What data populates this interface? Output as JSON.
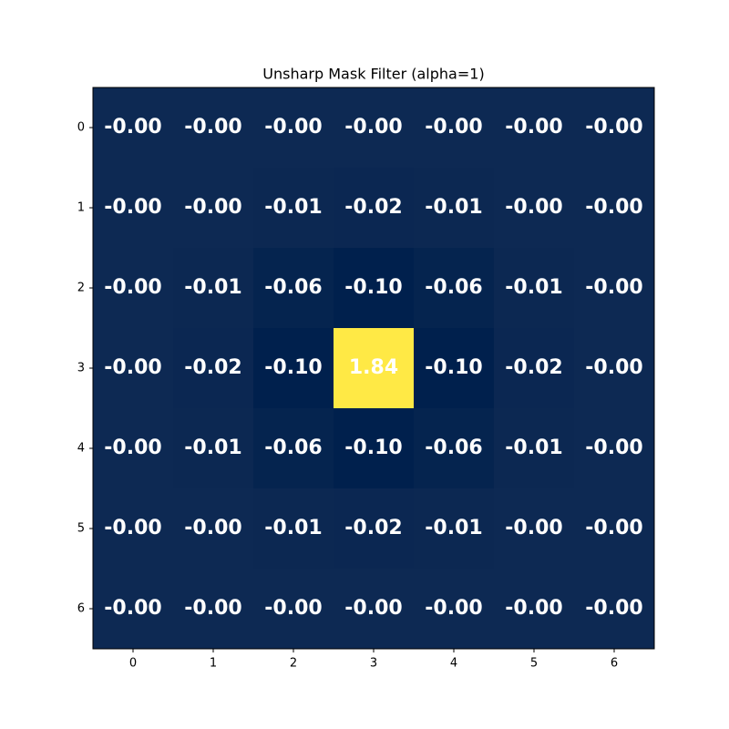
{
  "chart_data": {
    "type": "heatmap",
    "title": "Unsharp Mask Filter (alpha=1)",
    "values": [
      [
        -0.0001,
        -0.0008,
        -0.003,
        -0.004,
        -0.003,
        -0.0008,
        -0.0001
      ],
      [
        -0.0008,
        -0.004,
        -0.012,
        -0.02,
        -0.012,
        -0.004,
        -0.0008
      ],
      [
        -0.003,
        -0.012,
        -0.06,
        -0.1,
        -0.06,
        -0.012,
        -0.003
      ],
      [
        -0.004,
        -0.02,
        -0.1,
        1.84,
        -0.1,
        -0.02,
        -0.004
      ],
      [
        -0.003,
        -0.012,
        -0.06,
        -0.1,
        -0.06,
        -0.012,
        -0.003
      ],
      [
        -0.0008,
        -0.004,
        -0.012,
        -0.02,
        -0.012,
        -0.004,
        -0.0008
      ],
      [
        -0.0001,
        -0.0008,
        -0.003,
        -0.004,
        -0.003,
        -0.0008,
        -0.0001
      ]
    ],
    "value_labels": [
      [
        "-0.00",
        "-0.00",
        "-0.00",
        "-0.00",
        "-0.00",
        "-0.00",
        "-0.00"
      ],
      [
        "-0.00",
        "-0.00",
        "-0.01",
        "-0.02",
        "-0.01",
        "-0.00",
        "-0.00"
      ],
      [
        "-0.00",
        "-0.01",
        "-0.06",
        "-0.10",
        "-0.06",
        "-0.01",
        "-0.00"
      ],
      [
        "-0.00",
        "-0.02",
        "-0.10",
        "1.84",
        "-0.10",
        "-0.02",
        "-0.00"
      ],
      [
        "-0.00",
        "-0.01",
        "-0.06",
        "-0.10",
        "-0.06",
        "-0.01",
        "-0.00"
      ],
      [
        "-0.00",
        "-0.00",
        "-0.01",
        "-0.02",
        "-0.01",
        "-0.00",
        "-0.00"
      ],
      [
        "-0.00",
        "-0.00",
        "-0.00",
        "-0.00",
        "-0.00",
        "-0.00",
        "-0.00"
      ]
    ],
    "colormap": "cividis",
    "xlim": [
      -0.5,
      6.5
    ],
    "ylim": [
      6.5,
      -0.5
    ],
    "xticks": [
      0,
      1,
      2,
      3,
      4,
      5,
      6
    ],
    "yticks": [
      0,
      1,
      2,
      3,
      4,
      5,
      6
    ]
  }
}
